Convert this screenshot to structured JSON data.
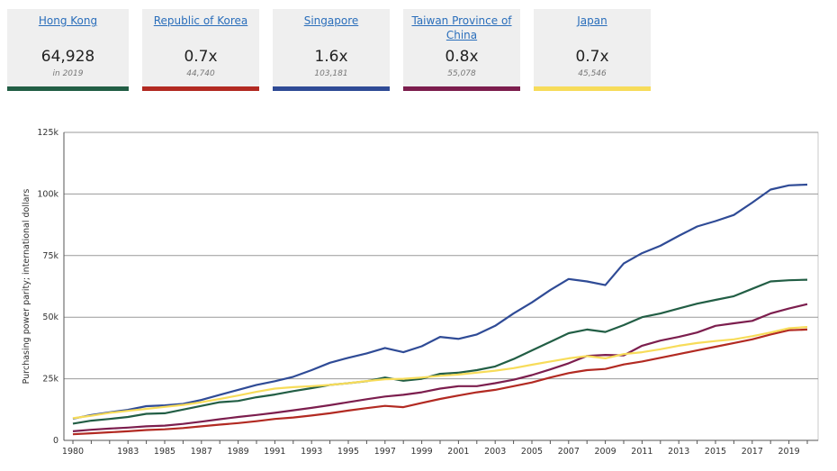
{
  "cards": [
    {
      "name": "Hong Kong",
      "value": "64,928",
      "sub": "in 2019",
      "color": "#225e45"
    },
    {
      "name": "Republic of Korea",
      "value": "0.7x",
      "sub": "44,740",
      "color": "#b22a22"
    },
    {
      "name": "Singapore",
      "value": "1.6x",
      "sub": "103,181",
      "color": "#2f4b96"
    },
    {
      "name": "Taiwan Province of China",
      "value": "0.8x",
      "sub": "55,078",
      "color": "#7c1e4e"
    },
    {
      "name": "Japan",
      "value": "0.7x",
      "sub": "45,546",
      "color": "#f7dc5a"
    }
  ],
  "chart_data": {
    "type": "line",
    "title": "",
    "xlabel": "",
    "ylabel": "Purchasing power parity; international dollars",
    "xlim": [
      1980,
      2020
    ],
    "ylim": [
      0,
      125000
    ],
    "grid": true,
    "y_ticks": [
      0,
      25000,
      50000,
      75000,
      100000,
      125000
    ],
    "y_tick_labels": [
      "0",
      "25k",
      "50k",
      "75k",
      "100k",
      "125k"
    ],
    "x_tick_labels": [
      "1980",
      "1983",
      "1985",
      "1987",
      "1989",
      "1991",
      "1993",
      "1995",
      "1997",
      "1999",
      "2001",
      "2003",
      "2005",
      "2007",
      "2009",
      "2011",
      "2013",
      "2015",
      "2017",
      "2019"
    ],
    "x": [
      1980,
      1981,
      1982,
      1983,
      1984,
      1985,
      1986,
      1987,
      1988,
      1989,
      1990,
      1991,
      1992,
      1993,
      1994,
      1995,
      1996,
      1997,
      1998,
      1999,
      2000,
      2001,
      2002,
      2003,
      2004,
      2005,
      2006,
      2007,
      2008,
      2009,
      2010,
      2011,
      2012,
      2013,
      2014,
      2015,
      2016,
      2017,
      2018,
      2019,
      2020
    ],
    "series": [
      {
        "name": "Singapore",
        "color": "#2f4b96",
        "values": [
          8800,
          10300,
          11400,
          12400,
          13900,
          14200,
          14800,
          16400,
          18500,
          20500,
          22500,
          24000,
          25800,
          28500,
          31500,
          33500,
          35300,
          37500,
          35800,
          38200,
          42000,
          41200,
          43000,
          46500,
          51500,
          56000,
          61000,
          65500,
          64500,
          63000,
          71800,
          76000,
          79000,
          83000,
          86800,
          89000,
          91500,
          96500,
          101800,
          103500,
          103800
        ]
      },
      {
        "name": "Hong Kong",
        "color": "#225e45",
        "values": [
          6800,
          8000,
          8700,
          9500,
          10800,
          11000,
          12500,
          14000,
          15500,
          16000,
          17500,
          18600,
          20000,
          21200,
          22500,
          23200,
          24000,
          25500,
          24200,
          25000,
          27000,
          27500,
          28500,
          30000,
          33000,
          36500,
          40000,
          43500,
          45000,
          44000,
          46800,
          50000,
          51500,
          53500,
          55500,
          57000,
          58500,
          61500,
          64500,
          65000,
          65200
        ]
      },
      {
        "name": "Taiwan Province of China",
        "color": "#7c1e4e",
        "values": [
          3700,
          4300,
          4800,
          5200,
          5700,
          6000,
          6700,
          7600,
          8600,
          9500,
          10300,
          11200,
          12200,
          13200,
          14300,
          15500,
          16700,
          17800,
          18500,
          19500,
          21000,
          22000,
          22000,
          23200,
          24600,
          26500,
          28800,
          31300,
          34300,
          34700,
          34500,
          38400,
          40500,
          42000,
          43800,
          46500,
          47500,
          48500,
          51500,
          53500,
          55300
        ]
      },
      {
        "name": "Republic of Korea",
        "color": "#b22a22",
        "values": [
          2500,
          2900,
          3300,
          3700,
          4200,
          4500,
          5000,
          5700,
          6400,
          7000,
          7800,
          8700,
          9300,
          10100,
          11000,
          12100,
          13100,
          14000,
          13500,
          15200,
          16800,
          18200,
          19500,
          20500,
          22000,
          23500,
          25500,
          27300,
          28500,
          29000,
          30800,
          32000,
          33500,
          35000,
          36500,
          38000,
          39500,
          41000,
          43000,
          44700,
          45000
        ]
      },
      {
        "name": "Japan",
        "color": "#f7dc5a",
        "values": [
          9000,
          10000,
          11200,
          12000,
          12800,
          13600,
          14400,
          15500,
          16800,
          18200,
          19700,
          21000,
          21600,
          22000,
          22500,
          23200,
          24100,
          24800,
          25000,
          25500,
          26200,
          26700,
          27500,
          28300,
          29300,
          30700,
          32000,
          33300,
          34200,
          33300,
          35000,
          35800,
          37000,
          38400,
          39500,
          40300,
          41000,
          42300,
          43800,
          45500,
          46000
        ]
      }
    ]
  }
}
